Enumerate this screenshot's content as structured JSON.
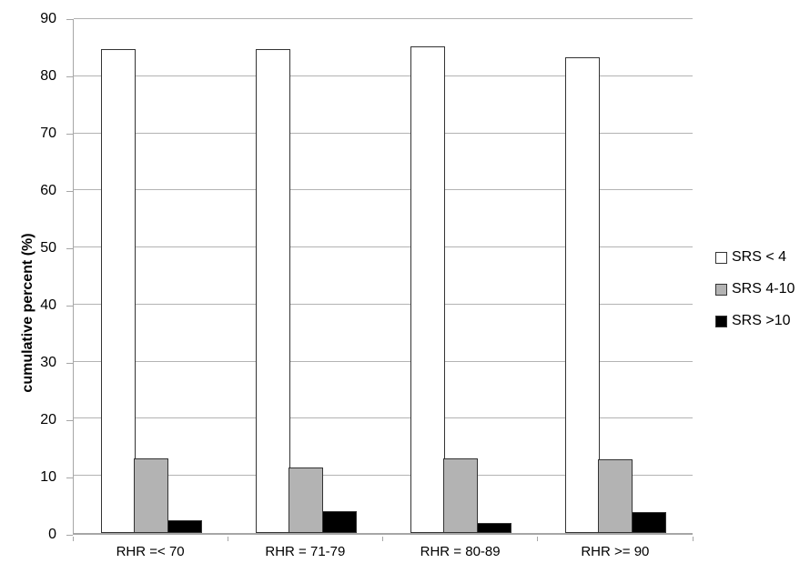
{
  "chart_data": {
    "type": "bar",
    "title": "",
    "xlabel": "",
    "ylabel": "cumulative percent (%)",
    "ylim": [
      0,
      90
    ],
    "yticks": [
      0,
      10,
      20,
      30,
      40,
      50,
      60,
      70,
      80,
      90
    ],
    "grid": "horizontal",
    "legend_position": "right",
    "categories": [
      "RHR =< 70",
      "RHR = 71-79",
      "RHR = 80-89",
      "RHR >= 90"
    ],
    "series": [
      {
        "name": "SRS < 4",
        "color": "#ffffff",
        "values": [
          84.8,
          84.8,
          85.2,
          83.3
        ]
      },
      {
        "name": "SRS 4-10",
        "color": "#b3b3b3",
        "values": [
          13.1,
          11.5,
          13.0,
          12.9
        ]
      },
      {
        "name": "SRS >10",
        "color": "#000000",
        "values": [
          2.2,
          3.8,
          1.8,
          3.6
        ]
      }
    ],
    "colors": {
      "gridline": "#b3b3b3",
      "axis": "#a6a6a6",
      "bar_border": "#333333",
      "text": "#000000"
    }
  }
}
